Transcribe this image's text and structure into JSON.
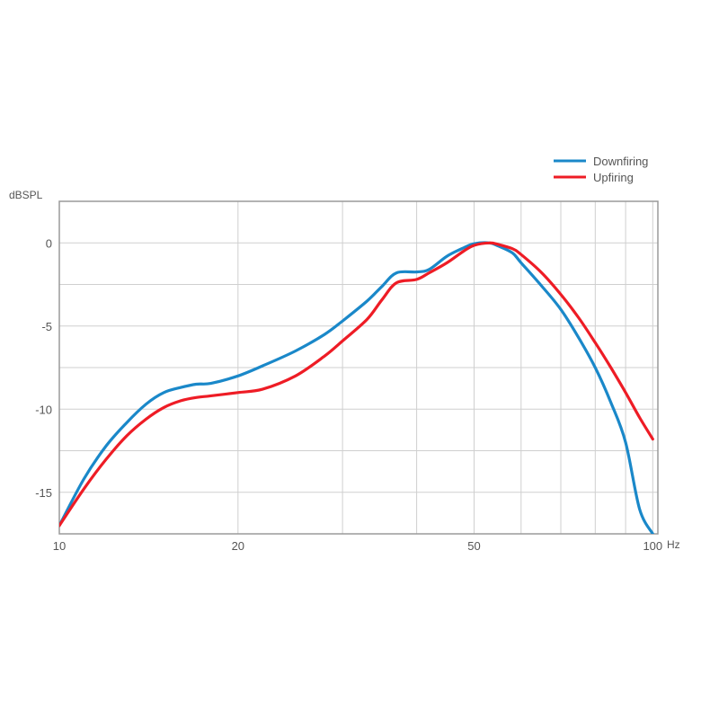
{
  "chart_data": {
    "type": "line",
    "title": "",
    "xlabel": "Hz",
    "ylabel": "dBSPL",
    "xscale": "log",
    "xlim": [
      10,
      102
    ],
    "ylim": [
      -17.5,
      2.5
    ],
    "xticks": [
      10,
      20,
      50,
      100
    ],
    "xtick_labels": [
      "10",
      "20",
      "50",
      "100"
    ],
    "x_gridlines": [
      20,
      30,
      40,
      50,
      60,
      70,
      80,
      90,
      100
    ],
    "yticks": [
      0,
      -5,
      -10,
      -15
    ],
    "ytick_labels": [
      "0",
      "-5",
      "-10",
      "-15"
    ],
    "y_gridlines": [
      0,
      -2.5,
      -5,
      -7.5,
      -10,
      -12.5,
      -15
    ],
    "grid": true,
    "legend_position": "top-right",
    "series": [
      {
        "name": "Downfiring",
        "color": "#1a88c9",
        "x": [
          10,
          11,
          12,
          13,
          14,
          15,
          16,
          17,
          18,
          20,
          22,
          25,
          28,
          30,
          33,
          35,
          37,
          40,
          42,
          45,
          48,
          50,
          53,
          55,
          58,
          60,
          65,
          70,
          75,
          80,
          85,
          90,
          95,
          100
        ],
        "y": [
          -17.0,
          -14.2,
          -12.2,
          -10.8,
          -9.7,
          -9.0,
          -8.7,
          -8.5,
          -8.45,
          -8.0,
          -7.4,
          -6.5,
          -5.5,
          -4.7,
          -3.5,
          -2.6,
          -1.8,
          -1.75,
          -1.6,
          -0.8,
          -0.3,
          -0.05,
          0.0,
          -0.2,
          -0.6,
          -1.2,
          -2.6,
          -4.0,
          -5.7,
          -7.5,
          -9.6,
          -12.0,
          -16.0,
          -17.5
        ]
      },
      {
        "name": "Upfiring",
        "color": "#ee1c25",
        "x": [
          10,
          11,
          12,
          13,
          14,
          15,
          16,
          17,
          18,
          20,
          22,
          25,
          28,
          30,
          33,
          35,
          37,
          40,
          42,
          45,
          48,
          50,
          53,
          55,
          58,
          60,
          65,
          70,
          75,
          80,
          85,
          90,
          95,
          100
        ],
        "y": [
          -17.0,
          -14.8,
          -13.0,
          -11.6,
          -10.6,
          -9.9,
          -9.5,
          -9.3,
          -9.2,
          -9.0,
          -8.8,
          -8.0,
          -6.8,
          -5.9,
          -4.6,
          -3.4,
          -2.4,
          -2.2,
          -1.8,
          -1.2,
          -0.5,
          -0.15,
          0.0,
          -0.1,
          -0.35,
          -0.7,
          -1.8,
          -3.1,
          -4.5,
          -6.0,
          -7.5,
          -9.0,
          -10.5,
          -11.8
        ]
      }
    ]
  }
}
